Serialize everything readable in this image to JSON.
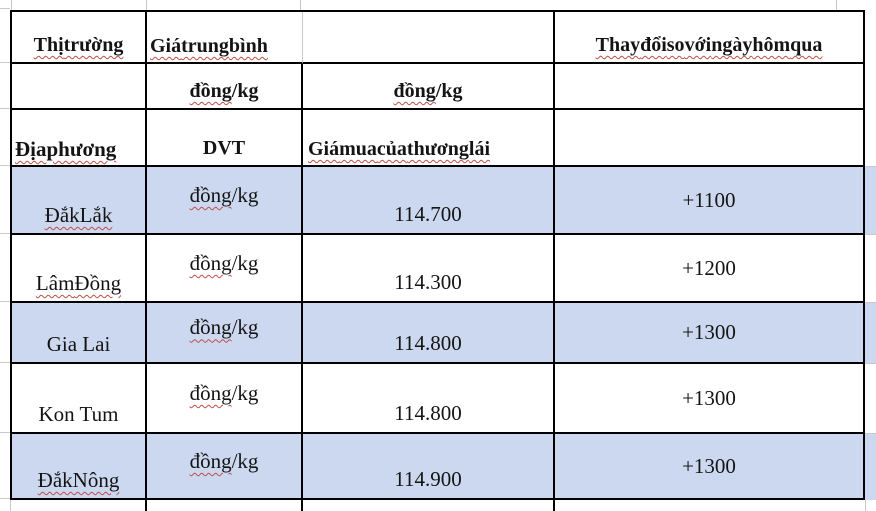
{
  "colors": {
    "highlight": "#ccd8f0",
    "border": "#000000",
    "grid": "#c9c9c9",
    "squiggle": "#bf4d47",
    "text": "#141414",
    "bg": "#ffffff"
  },
  "header": {
    "market": "Thị trường",
    "avg_price": "Giá trung bình",
    "change": "Thay đổi so với ngày hôm qua",
    "unit_word": "đồng",
    "unit_rest": "/kg",
    "locality": "Địa phương",
    "dvt": "DVT",
    "buy_price": "Giá mua của thương lái"
  },
  "rows": [
    {
      "region": "Đắk Lắk",
      "unit_word": "đồng",
      "unit_rest": "/kg",
      "price": "114.700",
      "change": "+1100",
      "highlighted": true,
      "misspelled": true
    },
    {
      "region": "Lâm Đồng",
      "unit_word": "đồng",
      "unit_rest": "/kg",
      "price": "114.300",
      "change": "+1200",
      "highlighted": false,
      "misspelled": true
    },
    {
      "region": "Gia Lai",
      "unit_word": "đồng",
      "unit_rest": "/kg",
      "price": "114.800",
      "change": "+1300",
      "highlighted": true,
      "misspelled": false
    },
    {
      "region": "Kon Tum",
      "unit_word": "đồng",
      "unit_rest": "/kg",
      "price": "114.800",
      "change": "+1300",
      "highlighted": false,
      "misspelled": false
    },
    {
      "region": "Đắk Nông",
      "unit_word": "đồng",
      "unit_rest": "/kg",
      "price": "114.900",
      "change": "+1300",
      "highlighted": true,
      "misspelled": true
    }
  ]
}
